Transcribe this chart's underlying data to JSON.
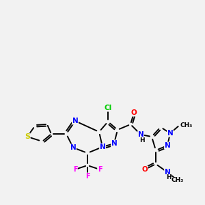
{
  "bg_color": "#f2f2f2",
  "bond_color": "#000000",
  "atom_colors": {
    "N": "#0000ff",
    "O": "#ff0000",
    "Cl": "#00cc00",
    "S": "#cccc00",
    "F": "#ff00ff",
    "H": "#000000",
    "C": "#000000"
  },
  "font_size": 7.5,
  "figsize": [
    3.0,
    3.0
  ],
  "dpi": 100,
  "lw": 1.4
}
